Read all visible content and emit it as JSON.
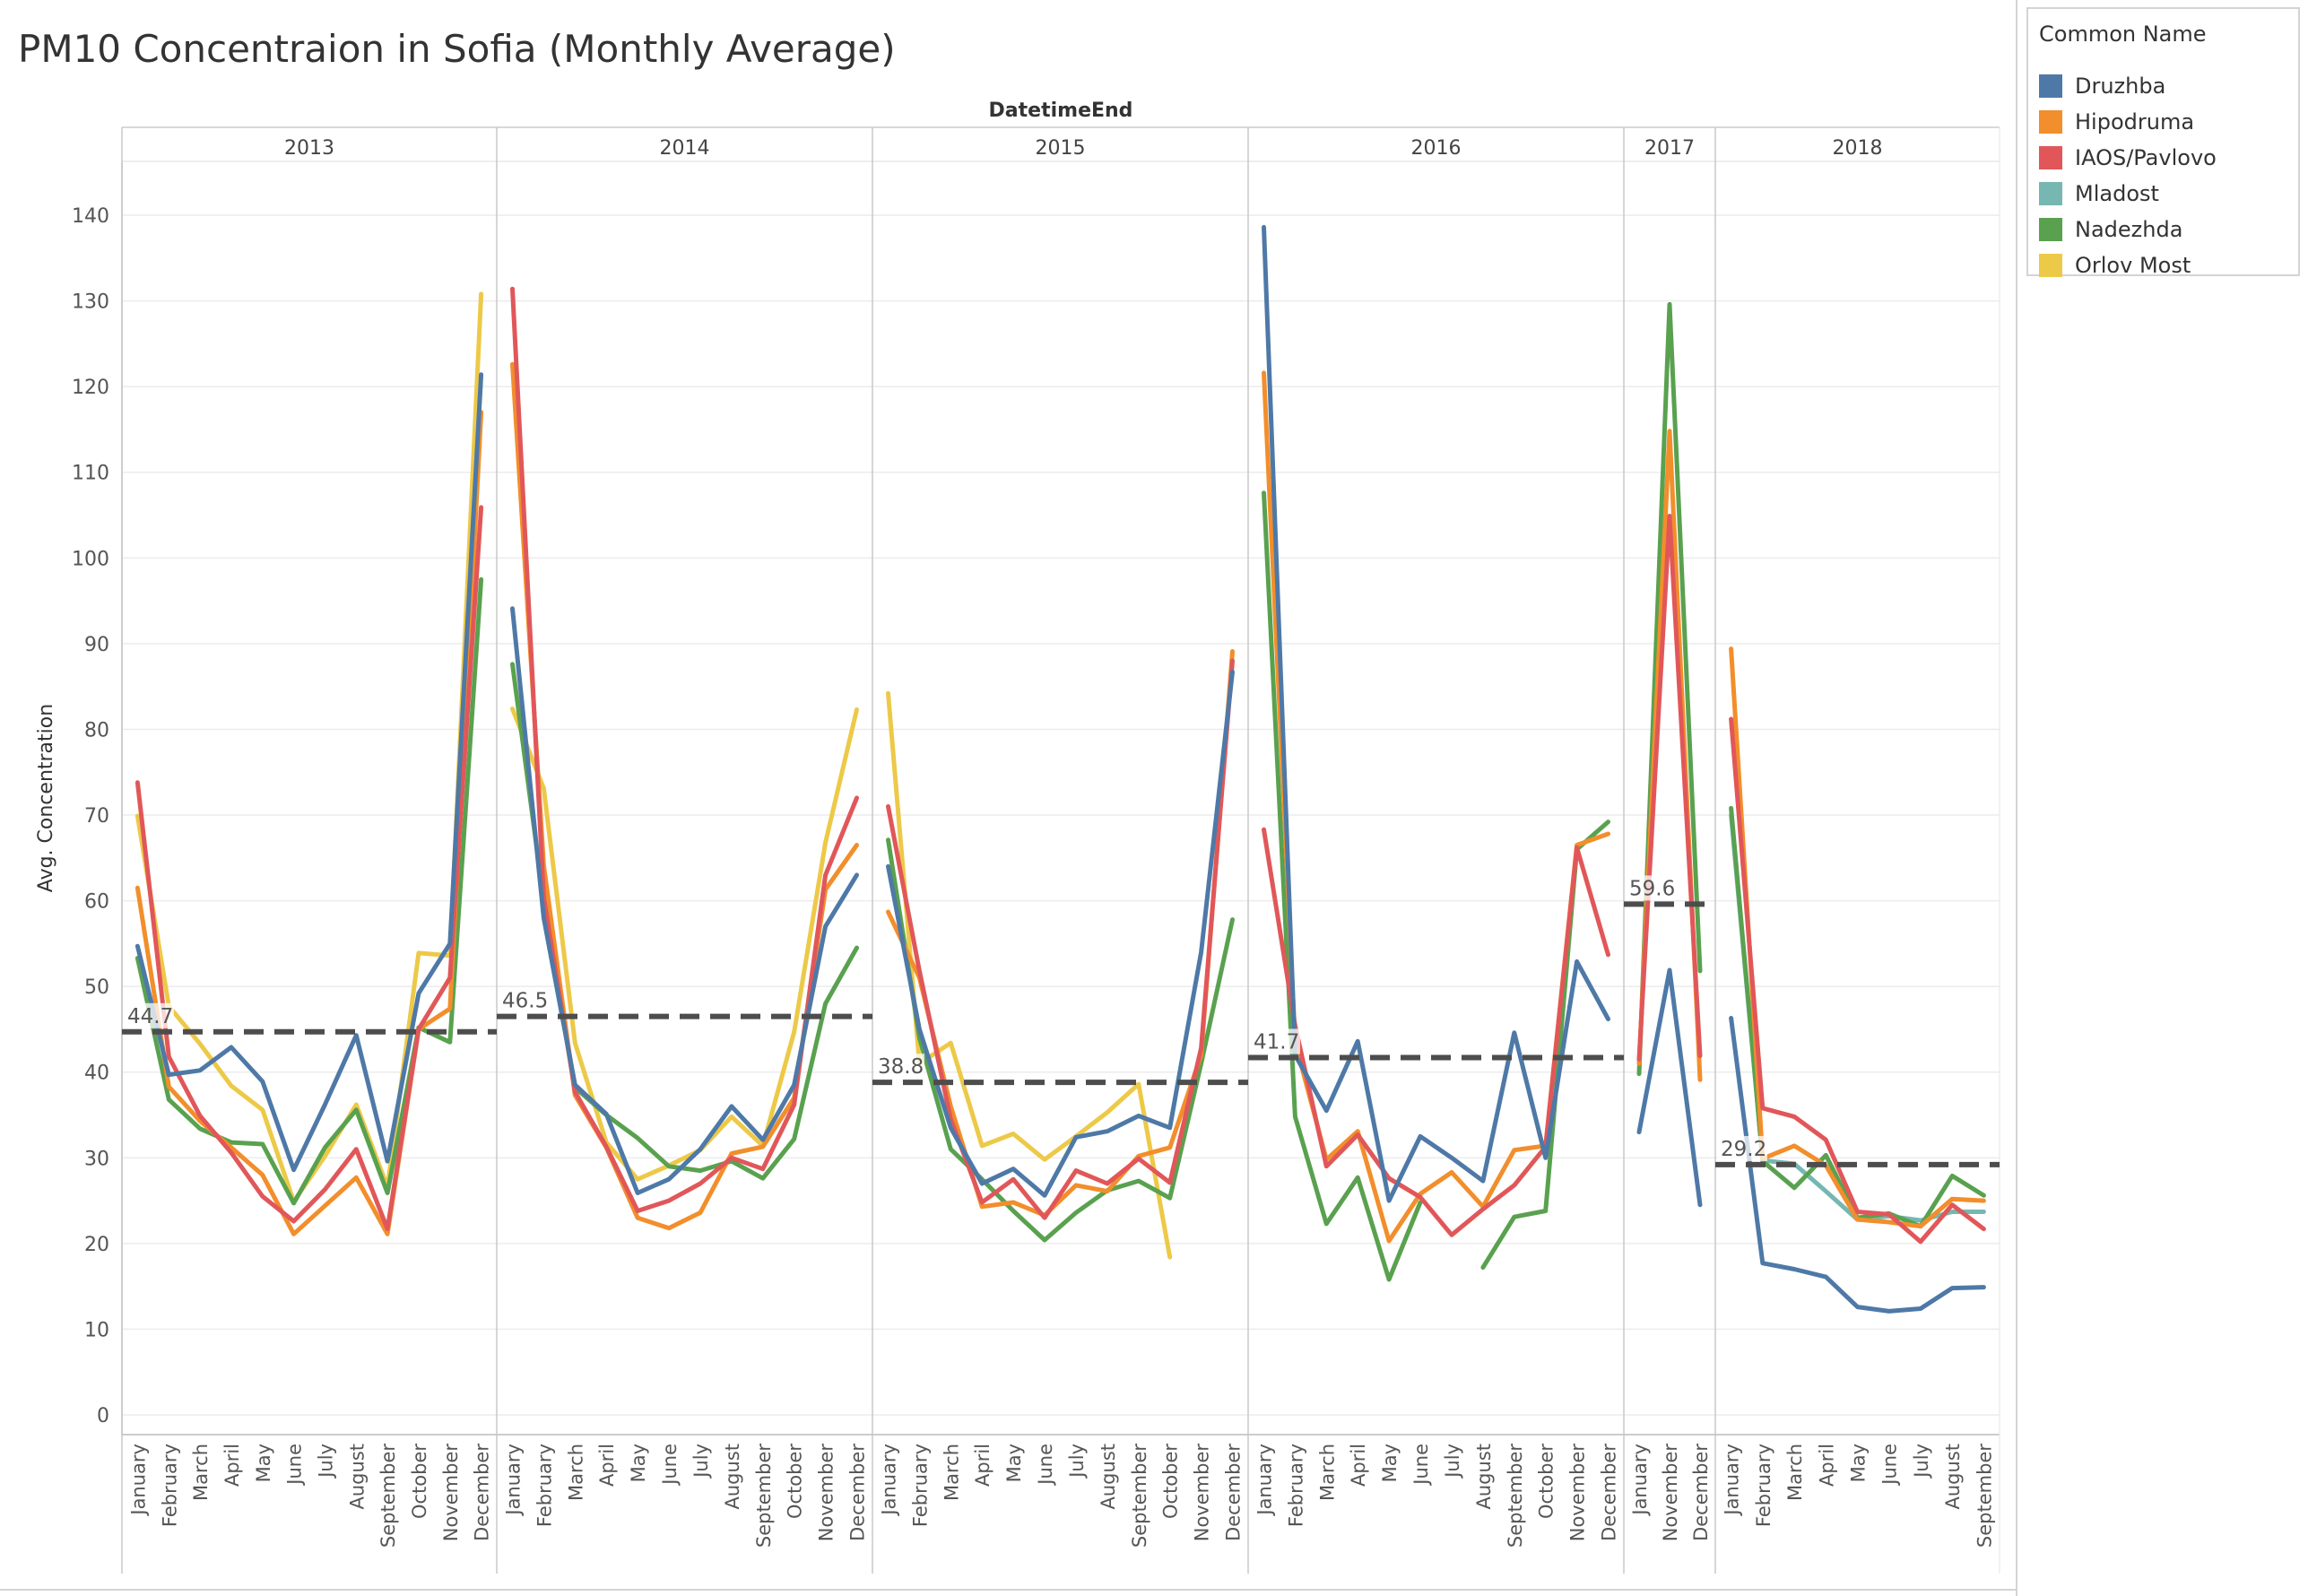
{
  "chart_data": {
    "type": "line",
    "title": "PM10 Concentraion in Sofia (Monthly Average)",
    "column_header": "DatetimeEnd",
    "ylabel": "Avg. Concentration",
    "ylim": [
      0,
      145
    ],
    "yticks": [
      0,
      10,
      20,
      30,
      40,
      50,
      60,
      70,
      80,
      90,
      100,
      110,
      120,
      130,
      140
    ],
    "grid": true,
    "legend_title": "Common Name",
    "legend_position": "right",
    "series_colors": {
      "Druzhba": "#4e79a7",
      "Hipodruma": "#f28e2b",
      "IAOS/Pavlovo": "#e15759",
      "Mladost": "#76b7b2",
      "Nadezhda": "#59a14f",
      "Orlov Most": "#edc948"
    },
    "series_order": [
      "Druzhba",
      "Hipodruma",
      "IAOS/Pavlovo",
      "Mladost",
      "Nadezhda",
      "Orlov Most"
    ],
    "draw_order": [
      "Orlov Most",
      "Mladost",
      "Nadezhda",
      "Hipodruma",
      "IAOS/Pavlovo",
      "Druzhba"
    ],
    "panels": [
      {
        "year": "2013",
        "months": [
          "January",
          "February",
          "March",
          "April",
          "May",
          "June",
          "July",
          "August",
          "September",
          "October",
          "November",
          "December"
        ],
        "average": 44.7,
        "series": {
          "Druzhba": [
            54.7,
            39.7,
            40.2,
            42.9,
            38.9,
            28.6,
            36.2,
            44.3,
            29.6,
            49.2,
            55.0,
            121.4
          ],
          "Hipodruma": [
            61.5,
            38.3,
            34.3,
            31.2,
            28.0,
            21.1,
            24.4,
            27.7,
            21.1,
            45.0,
            47.4,
            117.0
          ],
          "IAOS/Pavlovo": [
            73.8,
            41.8,
            34.9,
            30.6,
            25.5,
            22.6,
            26.3,
            31.0,
            21.7,
            45.0,
            51.0,
            105.9
          ],
          "Nadezhda": [
            53.3,
            36.8,
            33.4,
            31.8,
            31.6,
            24.7,
            31.2,
            35.6,
            25.9,
            45.2,
            43.5,
            97.5
          ],
          "Orlov Most": [
            69.9,
            47.7,
            43.3,
            38.4,
            35.6,
            24.9,
            30.2,
            36.2,
            26.6,
            53.9,
            53.6,
            130.8
          ]
        }
      },
      {
        "year": "2014",
        "months": [
          "January",
          "February",
          "March",
          "April",
          "May",
          "June",
          "July",
          "August",
          "September",
          "October",
          "November",
          "December"
        ],
        "average": 46.5,
        "series": {
          "Druzhba": [
            94.1,
            58.0,
            38.5,
            35.1,
            25.9,
            27.5,
            31.0,
            36.0,
            32.1,
            38.5,
            57.0,
            63.0
          ],
          "Hipodruma": [
            122.6,
            64.1,
            37.3,
            31.2,
            23.0,
            21.8,
            23.6,
            30.5,
            31.3,
            37.0,
            61.3,
            66.5
          ],
          "IAOS/Pavlovo": [
            131.4,
            60.4,
            37.7,
            31.3,
            23.8,
            25.0,
            27.0,
            30.0,
            28.7,
            36.2,
            63.0,
            72.0
          ],
          "Nadezhda": [
            87.6,
            60.0,
            38.2,
            35.0,
            32.3,
            29.0,
            28.5,
            29.6,
            27.6,
            32.2,
            48.0,
            54.5
          ],
          "Orlov Most": [
            82.4,
            73.1,
            43.4,
            31.8,
            27.5,
            29.1,
            30.9,
            34.8,
            31.4,
            44.7,
            66.8,
            82.3
          ]
        }
      },
      {
        "year": "2015",
        "months": [
          "January",
          "February",
          "March",
          "April",
          "May",
          "June",
          "July",
          "August",
          "September",
          "October",
          "November",
          "December"
        ],
        "average": 38.8,
        "series": {
          "Druzhba": [
            64.0,
            45.0,
            33.5,
            27.0,
            28.7,
            25.6,
            32.4,
            33.1,
            34.9,
            33.5,
            54.0,
            86.7
          ],
          "Hipodruma": [
            58.7,
            51.0,
            36.0,
            24.3,
            24.8,
            23.3,
            26.8,
            26.1,
            30.2,
            31.2,
            42.0,
            89.1
          ],
          "IAOS/Pavlovo": [
            71.0,
            51.8,
            34.5,
            24.8,
            27.5,
            23.0,
            28.5,
            27.0,
            29.9,
            27.1,
            42.8,
            88.0
          ],
          "Nadezhda": [
            67.1,
            44.0,
            31.0,
            27.5,
            23.8,
            20.4,
            23.6,
            26.2,
            27.3,
            25.3,
            41.0,
            57.8
          ],
          "Orlov Most": [
            84.2,
            41.0,
            43.4,
            31.4,
            32.8,
            29.8,
            32.5,
            35.3,
            38.6,
            18.4
          ]
        }
      },
      {
        "year": "2016",
        "months": [
          "January",
          "February",
          "March",
          "April",
          "May",
          "June",
          "July",
          "August",
          "September",
          "October",
          "November",
          "December"
        ],
        "average": 41.7,
        "series": {
          "Druzhba": [
            138.6,
            42.0,
            35.5,
            43.6,
            25.0,
            32.5,
            30.0,
            27.3,
            44.6,
            30.0,
            52.9,
            46.2
          ],
          "Hipodruma": [
            121.6,
            43.5,
            29.8,
            33.1,
            20.3,
            25.8,
            28.3,
            24.3,
            30.9,
            31.4,
            66.5,
            67.8
          ],
          "IAOS/Pavlovo": [
            68.3,
            45.4,
            29.0,
            32.7,
            27.6,
            25.4,
            21.0,
            24.0,
            26.8,
            31.3,
            66.2,
            53.7
          ],
          "Nadezhda": [
            107.6,
            34.8,
            22.3,
            27.7,
            15.8,
            24.8,
            null,
            17.2,
            23.1,
            23.8,
            66.0,
            69.2
          ]
        }
      },
      {
        "year": "2017",
        "months": [
          "January",
          "November",
          "December"
        ],
        "average": 59.6,
        "series": {
          "Druzhba": [
            33.0,
            51.9,
            24.5
          ],
          "Hipodruma": [
            41.0,
            114.8,
            39.1
          ],
          "IAOS/Pavlovo": [
            41.5,
            104.9,
            41.9
          ],
          "Nadezhda": [
            39.8,
            129.6,
            51.8
          ]
        }
      },
      {
        "year": "2018",
        "months": [
          "January",
          "February",
          "March",
          "April",
          "May",
          "June",
          "July",
          "August",
          "September"
        ],
        "average": 29.2,
        "series": {
          "Druzhba": [
            46.3,
            17.7,
            17.0,
            16.1,
            12.6,
            12.1,
            12.4,
            14.8,
            14.9
          ],
          "Hipodruma": [
            89.4,
            29.9,
            31.4,
            29.1,
            22.8,
            22.5,
            22.0,
            25.2,
            25.0
          ],
          "IAOS/Pavlovo": [
            81.2,
            35.8,
            34.8,
            32.1,
            23.7,
            23.4,
            20.2,
            24.5,
            21.7
          ],
          "Mladost": [
            70.0,
            29.7,
            29.3,
            26.1,
            22.8,
            23.2,
            22.7,
            23.7,
            23.7
          ],
          "Nadezhda": [
            70.8,
            29.6,
            26.5,
            30.3,
            23.0,
            23.5,
            22.0,
            27.9,
            25.6
          ]
        }
      }
    ]
  }
}
